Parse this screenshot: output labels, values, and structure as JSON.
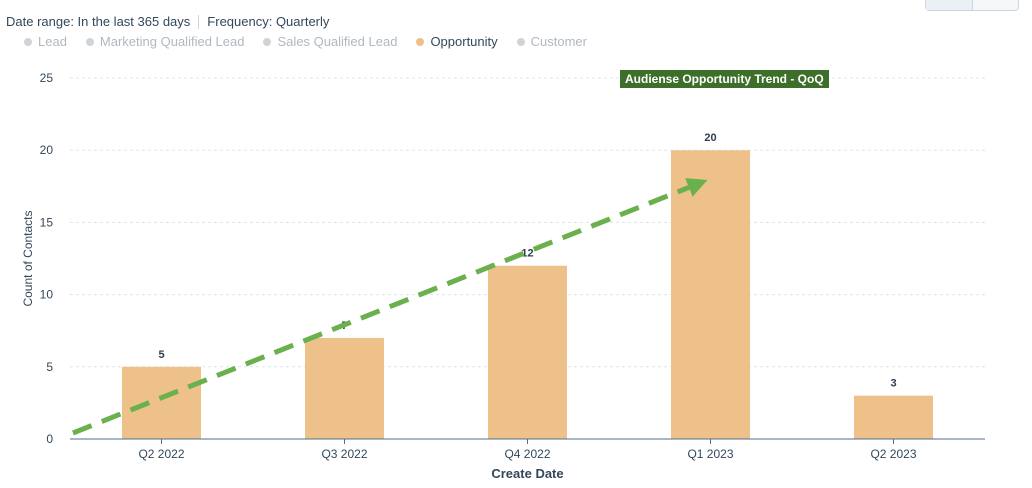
{
  "header": {
    "date_range": "Date range: In the last 365 days",
    "frequency": "Frequency: Quarterly"
  },
  "legend": {
    "items": [
      {
        "label": "Lead",
        "active": false
      },
      {
        "label": "Marketing Qualified Lead",
        "active": false
      },
      {
        "label": "Sales Qualified Lead",
        "active": false
      },
      {
        "label": "Opportunity",
        "active": true,
        "color": "#eec18a"
      },
      {
        "label": "Customer",
        "active": false
      }
    ]
  },
  "annotation": {
    "text": "Audiense Opportunity Trend - QoQ",
    "background": "#3d6e2a"
  },
  "chart_data": {
    "type": "bar",
    "title": "",
    "xlabel": "Create Date",
    "ylabel": "Count of Contacts",
    "categories": [
      "Q2 2022",
      "Q3 2022",
      "Q4 2022",
      "Q1 2023",
      "Q2 2023"
    ],
    "series": [
      {
        "name": "Opportunity",
        "values": [
          5,
          7,
          12,
          20,
          3
        ],
        "color": "#eec18a"
      }
    ],
    "ylim": [
      0,
      25
    ],
    "yticks": [
      0,
      5,
      10,
      15,
      20,
      25
    ],
    "grid": true,
    "trend_arrow": {
      "color": "#6ab04c",
      "style": "dashed"
    }
  }
}
